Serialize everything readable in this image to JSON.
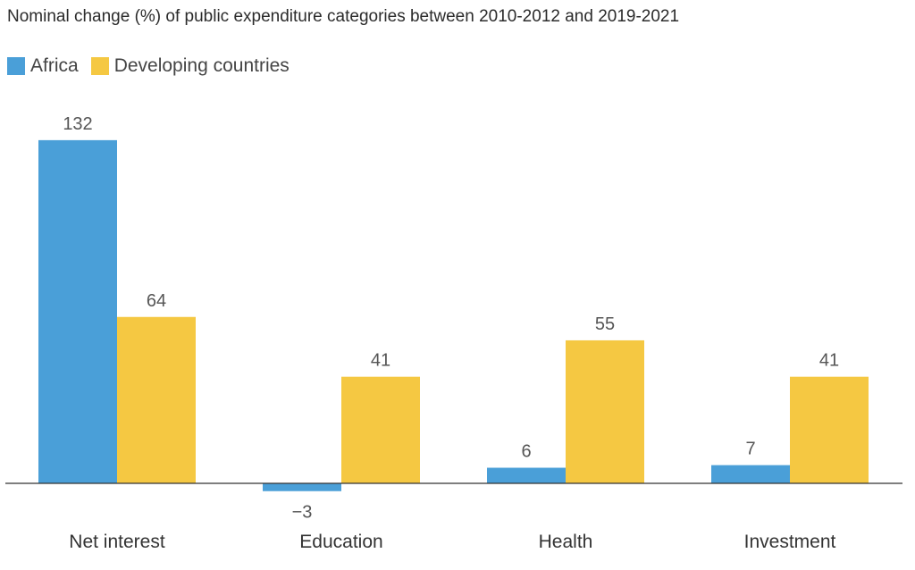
{
  "chart_data": {
    "type": "bar",
    "title": "Nominal change (%) of public expenditure categories between 2010-2012 and 2019-2021",
    "categories": [
      "Net interest",
      "Education",
      "Health",
      "Investment"
    ],
    "series": [
      {
        "name": "Africa",
        "color": "#4a9fd8",
        "values": [
          132,
          -3,
          6,
          7
        ],
        "labels": [
          "132",
          "−3",
          "6",
          "7"
        ]
      },
      {
        "name": "Developing countries",
        "color": "#f5c842",
        "values": [
          64,
          41,
          55,
          41
        ],
        "labels": [
          "64",
          "41",
          "55",
          "41"
        ]
      }
    ],
    "ylim": [
      -3,
      132
    ],
    "grid": false,
    "legend_position": "top-left"
  }
}
